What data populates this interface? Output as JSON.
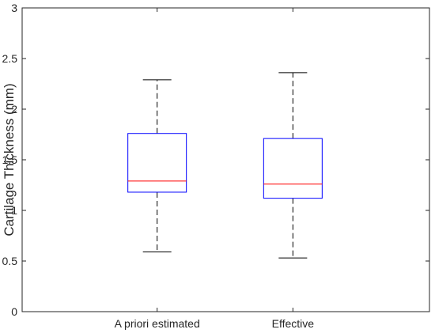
{
  "chart_data": {
    "type": "box",
    "title": "",
    "xlabel": "",
    "ylabel": "Cartilage Thickness (mm)",
    "ylim": [
      0,
      3
    ],
    "yticks": [
      "0",
      "0.5",
      "1",
      "1.5",
      "2",
      "2.5",
      "3"
    ],
    "categories": [
      "A priori estimated",
      "Effective"
    ],
    "boxes": [
      {
        "category": "A priori estimated",
        "whisker_low": 0.59,
        "q1": 1.18,
        "median": 1.29,
        "q3": 1.76,
        "whisker_high": 2.29
      },
      {
        "category": "Effective",
        "whisker_low": 0.53,
        "q1": 1.12,
        "median": 1.26,
        "q3": 1.71,
        "whisker_high": 2.36
      }
    ],
    "grid": false,
    "colors": {
      "box": "#0000ff",
      "median": "#ff0000",
      "whisker": "#000000",
      "axes": "#262626"
    }
  }
}
